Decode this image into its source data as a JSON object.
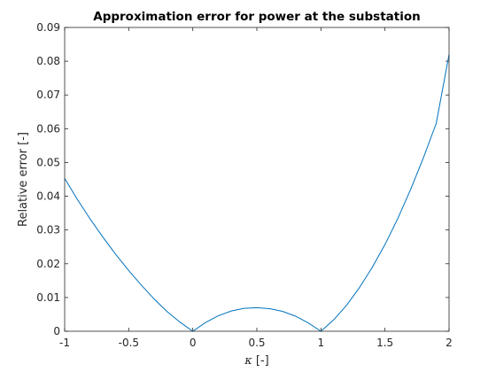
{
  "chart_data": {
    "type": "line",
    "title": "Approximation error for power at the substation",
    "xlabel_symbol": "κ",
    "xlabel_unit": "[-]",
    "ylabel": "Relative error [-]",
    "xlim": [
      -1,
      2
    ],
    "ylim": [
      0,
      0.09
    ],
    "xticks": [
      -1,
      -0.5,
      0,
      0.5,
      1,
      1.5,
      2
    ],
    "xtick_labels": [
      "-1",
      "-0.5",
      "0",
      "0.5",
      "1",
      "1.5",
      "2"
    ],
    "yticks": [
      0,
      0.01,
      0.02,
      0.03,
      0.04,
      0.05,
      0.06,
      0.07,
      0.08,
      0.09
    ],
    "ytick_labels": [
      "0",
      "0.01",
      "0.02",
      "0.03",
      "0.04",
      "0.05",
      "0.06",
      "0.07",
      "0.08",
      "0.09"
    ],
    "grid": false,
    "box": true,
    "colors": {
      "line": "#0072bd",
      "axis": "#262626"
    },
    "series": [
      {
        "x": [
          -1,
          -0.9,
          -0.8,
          -0.7,
          -0.6,
          -0.5,
          -0.4,
          -0.3,
          -0.2,
          -0.1,
          0,
          0.1,
          0.2,
          0.3,
          0.4,
          0.5,
          0.6,
          0.7,
          0.8,
          0.9,
          1,
          1.1,
          1.2,
          1.3,
          1.4,
          1.5,
          1.6,
          1.7,
          1.8,
          1.9,
          2
        ],
        "values": [
          0.0453,
          0.039,
          0.0332,
          0.0278,
          0.0227,
          0.018,
          0.0136,
          0.0095,
          0.0058,
          0.0027,
          0,
          0.0026,
          0.0046,
          0.006,
          0.0068,
          0.007,
          0.0067,
          0.0059,
          0.0045,
          0.0025,
          0,
          0.0034,
          0.0077,
          0.0129,
          0.0189,
          0.0257,
          0.0334,
          0.042,
          0.0514,
          0.0616,
          0.082
        ]
      }
    ]
  }
}
